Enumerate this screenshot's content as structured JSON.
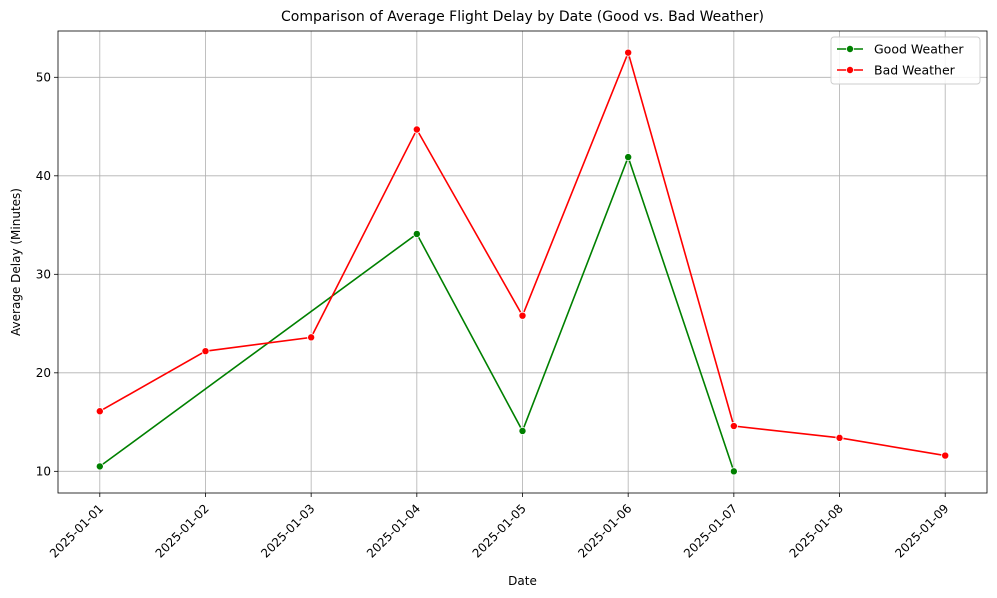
{
  "chart_data": {
    "type": "line",
    "title": "Comparison of Average Flight Delay by Date (Good vs. Bad Weather)",
    "xlabel": "Date",
    "ylabel": "Average Delay (Minutes)",
    "categories": [
      "2025-01-01",
      "2025-01-02",
      "2025-01-03",
      "2025-01-04",
      "2025-01-05",
      "2025-01-06",
      "2025-01-07",
      "2025-01-08",
      "2025-01-09"
    ],
    "ylim": [
      7.8,
      54.7
    ],
    "yticks": [
      10,
      20,
      30,
      40,
      50
    ],
    "grid": true,
    "legend_position": "top-right",
    "series": [
      {
        "name": "Good Weather",
        "color": "#008000",
        "points": [
          {
            "x": "2025-01-01",
            "y": 10.5
          },
          {
            "x": "2025-01-04",
            "y": 34.1
          },
          {
            "x": "2025-01-05",
            "y": 14.1
          },
          {
            "x": "2025-01-06",
            "y": 41.9
          },
          {
            "x": "2025-01-07",
            "y": 10.0
          }
        ]
      },
      {
        "name": "Bad Weather",
        "color": "#ff0000",
        "points": [
          {
            "x": "2025-01-01",
            "y": 16.1
          },
          {
            "x": "2025-01-02",
            "y": 22.2
          },
          {
            "x": "2025-01-03",
            "y": 23.6
          },
          {
            "x": "2025-01-04",
            "y": 44.7
          },
          {
            "x": "2025-01-05",
            "y": 25.8
          },
          {
            "x": "2025-01-06",
            "y": 52.5
          },
          {
            "x": "2025-01-07",
            "y": 14.6
          },
          {
            "x": "2025-01-08",
            "y": 13.4
          },
          {
            "x": "2025-01-09",
            "y": 11.6
          }
        ]
      }
    ]
  }
}
